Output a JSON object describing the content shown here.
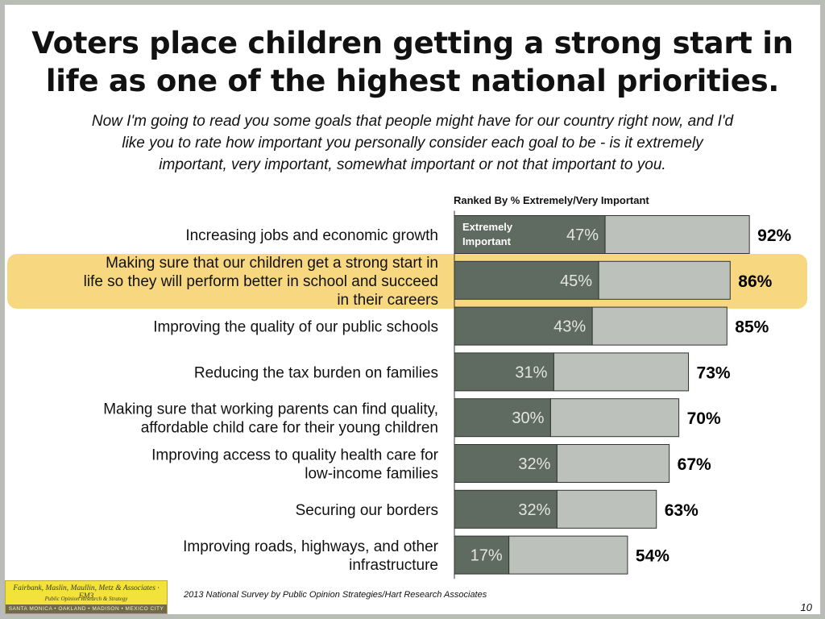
{
  "title_lines": [
    "Voters place children getting a strong start in",
    "life as one of the highest national priorities."
  ],
  "subtitle_lines": [
    "Now I'm going to read you some goals that people might have for our country right now, and I'd",
    "like you to rate how important you personally consider each goal to be - is it extremely",
    "important, very important, somewhat important or not that important to you."
  ],
  "ranked_note": "Ranked By % Extremely/Very Important",
  "footer_source": "2013 National Survey by Public Opinion Strategies/Hart Research Associates",
  "page_number": "10",
  "logo": {
    "line1": "Fairbank, Maslin, Maullin, Metz & Associates · FM3",
    "line2": "Public Opinion Research & Strategy",
    "line3": "SANTA MONICA • OAKLAND • MADISON • MEXICO CITY"
  },
  "colors": {
    "extremely": "#5f6b60",
    "very": "#bcc2bb",
    "highlight": "#f7d77f",
    "frame": "#b9bdb6"
  },
  "chart_data": {
    "type": "bar",
    "orientation": "horizontal",
    "stacked": true,
    "xlim": [
      0,
      100
    ],
    "legend_label_lines": [
      "Extremely",
      "Important"
    ],
    "highlight_index": 1,
    "categories": [
      [
        "Increasing jobs and economic growth"
      ],
      [
        "Making sure that our children get a strong start in",
        "life so they will perform better in school and succeed",
        "in their careers"
      ],
      [
        "Improving the quality of our public schools"
      ],
      [
        "Reducing the tax burden on families"
      ],
      [
        "Making sure that working parents can find quality,",
        "affordable child care for their young children"
      ],
      [
        "Improving access to quality health care for",
        "low-income families"
      ],
      [
        "Securing our borders"
      ],
      [
        "Improving roads, highways, and other",
        "infrastructure"
      ]
    ],
    "series": [
      {
        "name": "Extremely Important",
        "values": [
          47,
          45,
          43,
          31,
          30,
          32,
          32,
          17
        ]
      },
      {
        "values": [
          45,
          41,
          42,
          42,
          40,
          35,
          31,
          37
        ]
      }
    ],
    "data_labels": [
      "47%",
      "45%",
      "43%",
      "31%",
      "30%",
      "32%",
      "32%",
      "17%"
    ],
    "totals": [
      92,
      86,
      85,
      73,
      70,
      67,
      63,
      54
    ],
    "total_labels": [
      "92%",
      "86%",
      "85%",
      "73%",
      "70%",
      "67%",
      "63%",
      "54%"
    ]
  }
}
